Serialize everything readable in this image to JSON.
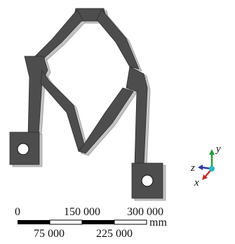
{
  "scale_bar": {
    "top_labels": [
      "0",
      "150 000",
      "300 000"
    ],
    "bottom_labels": [
      "75 000",
      "225 000"
    ],
    "unit": "mm"
  },
  "triad": {
    "y": "y",
    "z": "z",
    "x": "x"
  }
}
